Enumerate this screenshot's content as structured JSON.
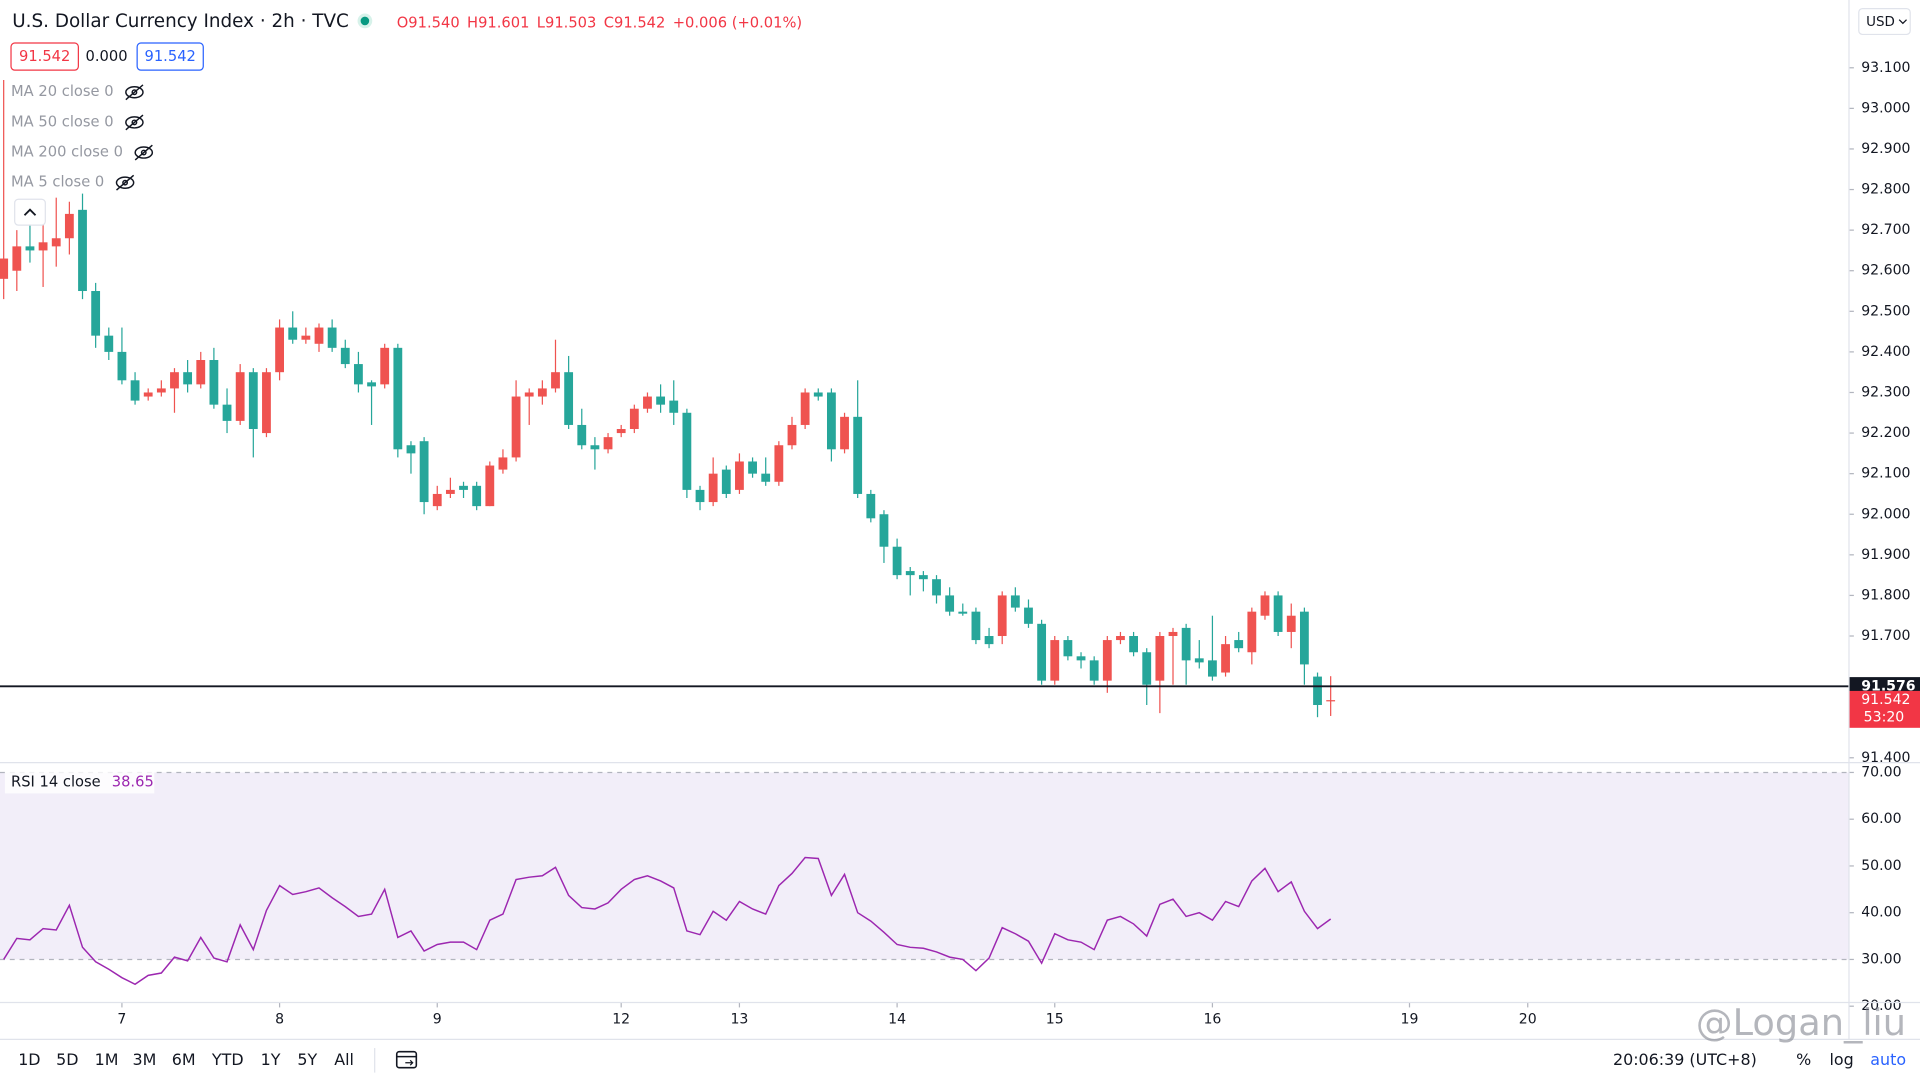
{
  "header": {
    "title": "U.S. Dollar Currency Index · 2h · TVC",
    "ohlc": [
      "O91.540",
      "H91.601",
      "L91.503",
      "C91.542",
      "+0.006 (+0.01%)"
    ],
    "boxes": [
      "91.542",
      "0.000",
      "91.542"
    ],
    "indicators": [
      "MA 20 close 0",
      "MA 50 close 0",
      "MA 200 close 0",
      "MA 5 close 0"
    ],
    "currency": "USD"
  },
  "toolbar": {
    "ranges": [
      "1D",
      "5D",
      "1M",
      "3M",
      "6M",
      "YTD",
      "1Y",
      "5Y",
      "All"
    ],
    "clock": "20:06:39 (UTC+8)",
    "options": [
      "%",
      "log",
      "auto"
    ]
  },
  "watermark": "@Logan_liu",
  "chart_data": [
    {
      "type": "candlestick",
      "up_color": "#ef5350",
      "down_color": "#26a69a",
      "x": [
        0,
        1,
        2,
        3,
        4,
        5,
        6,
        7,
        8,
        9,
        10,
        11,
        12,
        13,
        14,
        15,
        16,
        17,
        18,
        19,
        20,
        21,
        22,
        23,
        24,
        25,
        26,
        27,
        28,
        29,
        30,
        31,
        32,
        33,
        34,
        35,
        36,
        37,
        38,
        39,
        40,
        41,
        42,
        43,
        44,
        45,
        46,
        47,
        48,
        49,
        50,
        51,
        52,
        53,
        54,
        55,
        56,
        57,
        58,
        59,
        60,
        61,
        62,
        63,
        64,
        65,
        66,
        67,
        68,
        69,
        70,
        71,
        72,
        73,
        74,
        75,
        76,
        77,
        78,
        79,
        80,
        81,
        82,
        83,
        84,
        85,
        86,
        87,
        88,
        89,
        90,
        91,
        92,
        93,
        94,
        95,
        96,
        97,
        98,
        99,
        100,
        101
      ],
      "open": [
        92.58,
        92.6,
        92.66,
        92.65,
        92.66,
        92.68,
        92.75,
        92.55,
        92.44,
        92.4,
        92.33,
        92.29,
        92.3,
        92.31,
        92.35,
        92.32,
        92.38,
        92.27,
        92.23,
        92.35,
        92.2,
        92.35,
        92.46,
        92.43,
        92.42,
        92.46,
        92.41,
        92.37,
        92.325,
        92.32,
        92.41,
        92.17,
        92.18,
        92.02,
        92.05,
        92.07,
        92.07,
        92.02,
        92.11,
        92.14,
        92.29,
        92.29,
        92.31,
        92.35,
        92.22,
        92.17,
        92.16,
        92.2,
        92.21,
        92.26,
        92.29,
        92.28,
        92.25,
        92.06,
        92.03,
        92.11,
        92.06,
        92.13,
        92.1,
        92.08,
        92.17,
        92.22,
        92.3,
        92.3,
        92.16,
        92.24,
        92.05,
        92.0,
        91.92,
        91.86,
        91.85,
        91.84,
        91.8,
        91.76,
        91.76,
        91.7,
        91.7,
        91.8,
        91.77,
        91.73,
        91.59,
        91.69,
        91.65,
        91.64,
        91.59,
        91.69,
        91.7,
        91.66,
        91.59,
        91.7,
        91.72,
        91.645,
        91.64,
        91.61,
        91.69,
        91.66,
        91.75,
        91.8,
        91.71,
        91.76,
        91.6,
        91.54
      ],
      "high": [
        93.07,
        92.7,
        92.72,
        92.73,
        92.78,
        92.77,
        92.79,
        92.57,
        92.46,
        92.46,
        92.35,
        92.31,
        92.33,
        92.36,
        92.38,
        92.4,
        92.41,
        92.31,
        92.37,
        92.36,
        92.36,
        92.48,
        92.5,
        92.46,
        92.47,
        92.48,
        92.43,
        92.4,
        92.33,
        92.42,
        92.42,
        92.18,
        92.19,
        92.07,
        92.09,
        92.08,
        92.08,
        92.13,
        92.16,
        92.33,
        92.31,
        92.33,
        92.43,
        92.39,
        92.26,
        92.19,
        92.2,
        92.22,
        92.27,
        92.3,
        92.32,
        92.33,
        92.26,
        92.07,
        92.14,
        92.12,
        92.15,
        92.14,
        92.14,
        92.18,
        92.24,
        92.31,
        92.31,
        92.31,
        92.25,
        92.33,
        92.06,
        92.01,
        91.94,
        91.87,
        91.86,
        91.85,
        91.82,
        91.78,
        91.77,
        91.72,
        91.81,
        91.82,
        91.79,
        91.74,
        91.7,
        91.7,
        91.66,
        91.65,
        91.7,
        91.71,
        91.71,
        91.67,
        91.71,
        91.72,
        91.73,
        91.69,
        91.75,
        91.7,
        91.71,
        91.77,
        91.81,
        91.81,
        91.78,
        91.77,
        91.61,
        91.601
      ],
      "low": [
        92.53,
        92.55,
        92.62,
        92.56,
        92.61,
        92.64,
        92.53,
        92.41,
        92.38,
        92.32,
        92.27,
        92.28,
        92.29,
        92.25,
        92.3,
        92.31,
        92.26,
        92.2,
        92.22,
        92.14,
        92.19,
        92.33,
        92.42,
        92.42,
        92.4,
        92.4,
        92.36,
        92.3,
        92.22,
        92.31,
        92.14,
        92.1,
        92.0,
        92.01,
        92.04,
        92.04,
        92.01,
        92.02,
        92.1,
        92.13,
        92.22,
        92.27,
        92.3,
        92.21,
        92.16,
        92.11,
        92.15,
        92.19,
        92.2,
        92.25,
        92.25,
        92.22,
        92.04,
        92.01,
        92.02,
        92.04,
        92.05,
        92.09,
        92.07,
        92.07,
        92.16,
        92.21,
        92.28,
        92.13,
        92.15,
        92.04,
        91.98,
        91.88,
        91.84,
        91.8,
        91.81,
        91.78,
        91.75,
        91.75,
        91.68,
        91.67,
        91.68,
        91.76,
        91.72,
        91.58,
        91.58,
        91.64,
        91.62,
        91.58,
        91.56,
        91.68,
        91.65,
        91.53,
        91.51,
        91.58,
        91.58,
        91.62,
        91.59,
        91.6,
        91.66,
        91.63,
        91.74,
        91.7,
        91.67,
        91.58,
        91.5,
        91.503
      ],
      "close": [
        92.63,
        92.66,
        92.65,
        92.67,
        92.68,
        92.74,
        92.55,
        92.44,
        92.4,
        92.33,
        92.28,
        92.3,
        92.31,
        92.35,
        92.32,
        92.38,
        92.27,
        92.23,
        92.35,
        92.21,
        92.35,
        92.46,
        92.43,
        92.44,
        92.46,
        92.41,
        92.37,
        92.32,
        92.315,
        92.41,
        92.16,
        92.15,
        92.03,
        92.05,
        92.06,
        92.06,
        92.02,
        92.12,
        92.14,
        92.29,
        92.3,
        92.31,
        92.35,
        92.22,
        92.17,
        92.16,
        92.19,
        92.21,
        92.26,
        92.29,
        92.27,
        92.25,
        92.06,
        92.03,
        92.1,
        92.05,
        92.13,
        92.1,
        92.08,
        92.17,
        92.22,
        92.3,
        92.29,
        92.16,
        92.24,
        92.05,
        91.99,
        91.92,
        91.85,
        91.85,
        91.84,
        91.8,
        91.76,
        91.755,
        91.69,
        91.68,
        91.8,
        91.77,
        91.73,
        91.59,
        91.69,
        91.65,
        91.64,
        91.59,
        91.69,
        91.7,
        91.66,
        91.58,
        91.7,
        91.71,
        91.64,
        91.635,
        91.6,
        91.68,
        91.67,
        91.76,
        91.8,
        91.71,
        91.75,
        91.63,
        91.53,
        91.542
      ],
      "xlim": [
        -0.28,
        140.45
      ],
      "xticks": [
        {
          "value": 9,
          "label": "7"
        },
        {
          "value": 21,
          "label": "8"
        },
        {
          "value": 33,
          "label": "9"
        },
        {
          "value": 47,
          "label": "12"
        },
        {
          "value": 56,
          "label": "13"
        },
        {
          "value": 68,
          "label": "14"
        },
        {
          "value": 80,
          "label": "15"
        },
        {
          "value": 92,
          "label": "16"
        },
        {
          "value": 107,
          "label": "19"
        },
        {
          "value": 116,
          "label": "20"
        }
      ],
      "ylim": [
        91.388,
        93.267
      ],
      "yticks": [
        {
          "value": 91.4,
          "label": "91.400"
        },
        {
          "value": 91.7,
          "label": "91.700"
        },
        {
          "value": 91.8,
          "label": "91.800"
        },
        {
          "value": 91.9,
          "label": "91.900"
        },
        {
          "value": 92.0,
          "label": "92.000"
        },
        {
          "value": 92.1,
          "label": "92.100"
        },
        {
          "value": 92.2,
          "label": "92.200"
        },
        {
          "value": 92.3,
          "label": "92.300"
        },
        {
          "value": 92.4,
          "label": "92.400"
        },
        {
          "value": 92.5,
          "label": "92.500"
        },
        {
          "value": 92.6,
          "label": "92.600"
        },
        {
          "value": 92.7,
          "label": "92.700"
        },
        {
          "value": 92.8,
          "label": "92.800"
        },
        {
          "value": 92.9,
          "label": "92.900"
        },
        {
          "value": 93.0,
          "label": "93.000"
        },
        {
          "value": 93.1,
          "label": "93.100"
        }
      ],
      "price_line": {
        "value": 91.576,
        "label": "91.576",
        "color": "#131722"
      },
      "last_price": {
        "value": 91.542,
        "label": "91.542",
        "color": "#f23645"
      },
      "countdown": "53:20"
    },
    {
      "type": "line",
      "title": "RSI 14 close",
      "current_value": 38.65,
      "series": [
        {
          "name": "RSI 14 close",
          "color": "#9c27b0",
          "values": [
            30,
            34.5,
            34.2,
            36.6,
            36.3,
            41.6,
            32.6,
            29.5,
            27.9,
            26.1,
            24.7,
            26.6,
            27.1,
            30.5,
            29.7,
            34.7,
            30.3,
            29.5,
            37.4,
            32.1,
            40.5,
            45.8,
            43.9,
            44.5,
            45.3,
            43.2,
            41.3,
            39.2,
            39.7,
            45,
            34.7,
            36.1,
            31.8,
            33.2,
            33.7,
            33.7,
            32.1,
            38.4,
            39.7,
            47.1,
            47.6,
            47.9,
            49.7,
            43.7,
            41.1,
            40.8,
            42.1,
            45,
            47.1,
            47.9,
            46.8,
            45.3,
            36.1,
            35.3,
            40.3,
            38.4,
            42.4,
            40.8,
            39.7,
            45.8,
            48.4,
            51.8,
            51.6,
            43.7,
            48.2,
            40,
            38.2,
            35.8,
            33.2,
            32.6,
            32.4,
            31.6,
            30.5,
            30,
            27.6,
            30.3,
            36.8,
            35.5,
            33.9,
            29.2,
            35.5,
            34.2,
            33.7,
            32.1,
            38.4,
            39.2,
            37.6,
            35,
            41.8,
            42.9,
            39.2,
            40,
            38.4,
            42.4,
            41.3,
            46.8,
            49.5,
            44.5,
            46.6,
            40.3,
            36.6,
            38.65
          ]
        }
      ],
      "bands": [
        30,
        70
      ],
      "band_color": "#7e57c2",
      "ylim": [
        20,
        72.1
      ],
      "yticks": [
        {
          "value": 20,
          "label": "20.00"
        },
        {
          "value": 30,
          "label": "30.00"
        },
        {
          "value": 40,
          "label": "40.00"
        },
        {
          "value": 50,
          "label": "50.00"
        },
        {
          "value": 60,
          "label": "60.00"
        },
        {
          "value": 70,
          "label": "70.00"
        }
      ]
    }
  ]
}
